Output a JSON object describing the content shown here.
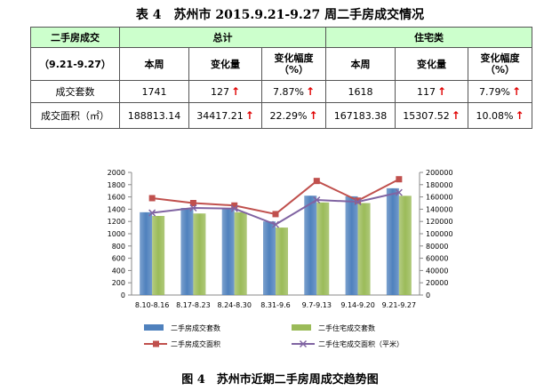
{
  "table": {
    "title": "表 4　苏州市 2015.9.21-9.27 周二手房成交情况",
    "header": {
      "col_main": "二手房成交",
      "group_total": "总计",
      "group_residential": "住宅类",
      "period": "（9.21-9.27）",
      "this_week": "本周",
      "change": "变化量",
      "change_pct": "变化幅度（%）"
    },
    "rows": [
      {
        "label": "成交套数",
        "total_this_week": "1741",
        "total_change": "127",
        "total_pct": "7.87%",
        "res_this_week": "1618",
        "res_change": "117",
        "res_pct": "7.79%"
      },
      {
        "label": "成交面积（㎡）",
        "total_this_week": "188813.14",
        "total_change": "34417.21",
        "total_pct": "22.29%",
        "res_this_week": "167183.38",
        "res_change": "15307.52",
        "res_pct": "10.08%"
      }
    ],
    "up_arrow": "↑",
    "arrow_color": "#e00000",
    "header_bg": "#ccffcc"
  },
  "chart_data": {
    "type": "bar",
    "categories": [
      "8.10-8.16",
      "8.17-8.23",
      "8.24-8.30",
      "8.31-9.6",
      "9.7-9.13",
      "9.14-9.20",
      "9.21-9.27"
    ],
    "y_left": {
      "min": 0,
      "max": 2000,
      "step": 200
    },
    "y_right": {
      "min": 0,
      "max": 200000,
      "step": 20000
    },
    "series": [
      {
        "name": "二手房成交套数",
        "kind": "bar",
        "axis": "left",
        "color": "#4f81bd",
        "values": [
          1350,
          1420,
          1410,
          1200,
          1620,
          1610,
          1741
        ]
      },
      {
        "name": "二手住宅成交套数",
        "kind": "bar",
        "axis": "left",
        "color": "#9bbb59",
        "values": [
          1290,
          1330,
          1350,
          1100,
          1510,
          1500,
          1618
        ]
      },
      {
        "name": "二手房成交面积",
        "kind": "line",
        "axis": "right",
        "color": "#c0504d",
        "marker": "square",
        "values": [
          158000,
          150000,
          146000,
          132000,
          186000,
          154000,
          188813
        ]
      },
      {
        "name": "二手住宅成交面积（平米）",
        "kind": "line",
        "axis": "right",
        "color": "#8064a2",
        "marker": "x",
        "values": [
          134000,
          142000,
          141000,
          115000,
          155000,
          152000,
          167183
        ]
      }
    ],
    "legend_position": "bottom",
    "grid": false
  },
  "figure_caption": "图 4　苏州市近期二手房周成交趋势图"
}
